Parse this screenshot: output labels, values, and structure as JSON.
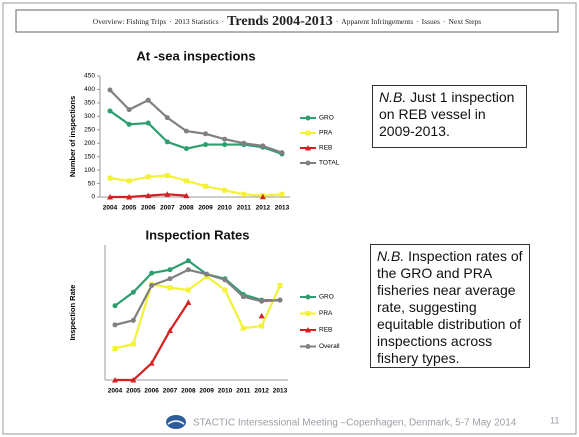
{
  "header": {
    "items": [
      "Overview: Fishing Trips",
      "2013 Statistics",
      "Trends 2004-2013",
      "Apparent Infringements",
      "Issues",
      "Next Steps"
    ],
    "separator": "·",
    "active": 2
  },
  "chart_data": [
    {
      "type": "line",
      "title": "At -sea inspections",
      "y_label": "Number of inspections",
      "categories": [
        "2004",
        "2005",
        "2006",
        "2007",
        "2008",
        "2009",
        "2010",
        "2011",
        "2012",
        "2013"
      ],
      "series": [
        {
          "name": "GRO",
          "color": "#2e9e6e",
          "marker": "circle",
          "values": [
            320,
            270,
            275,
            205,
            180,
            195,
            195,
            195,
            185,
            160
          ]
        },
        {
          "name": "PRA",
          "color": "#f2f23a",
          "marker": "square",
          "values": [
            70,
            60,
            75,
            80,
            60,
            40,
            25,
            10,
            5,
            10
          ]
        },
        {
          "name": "REB",
          "color": "#d42020",
          "marker": "triangle",
          "values": [
            0,
            0,
            5,
            10,
            5,
            null,
            null,
            null,
            1,
            null
          ]
        },
        {
          "name": "TOTAL",
          "color": "#808080",
          "marker": "circle",
          "values": [
            398,
            325,
            360,
            295,
            245,
            235,
            215,
            200,
            190,
            165
          ]
        }
      ],
      "ylim": [
        0,
        450
      ],
      "yticks": [
        0,
        50,
        100,
        150,
        200,
        250,
        300,
        350,
        400,
        450
      ],
      "legend": "right"
    },
    {
      "type": "line",
      "title": "Inspection Rates",
      "y_label": "Inspection Rate",
      "categories": [
        "2004",
        "2005",
        "2006",
        "2007",
        "2008",
        "2009",
        "2010",
        "2011",
        "2012",
        "2013"
      ],
      "series": [
        {
          "name": "GRO",
          "color": "#2e9e6e",
          "marker": "circle",
          "values": [
            33,
            39,
            47.5,
            49,
            53,
            47,
            45,
            38,
            35.5,
            35.5
          ]
        },
        {
          "name": "PRA",
          "color": "#f2f23a",
          "marker": "square",
          "values": [
            14,
            16,
            42.5,
            41,
            40,
            46,
            40,
            23,
            24,
            42
          ]
        },
        {
          "name": "REB",
          "color": "#d42020",
          "marker": "triangle",
          "values": [
            0,
            0,
            7.5,
            22,
            34.5,
            null,
            null,
            null,
            28.5,
            null
          ]
        },
        {
          "name": "Overall",
          "color": "#808080",
          "marker": "circle",
          "values": [
            24.5,
            26.5,
            42,
            45,
            49,
            47,
            44.5,
            37,
            35,
            35.5
          ]
        }
      ],
      "ylim": [
        0,
        60
      ],
      "legend": "right"
    }
  ],
  "notes": [
    {
      "emphasis": "N.B.",
      "text": "Just 1 inspection on REB vessel in 2009-2013."
    },
    {
      "emphasis": "N.B.",
      "text": "Inspection rates of the GRO and PRA fisheries near average rate, suggesting equitable distribution of inspections across fishery types."
    }
  ],
  "footer": {
    "text": "STACTIC Intersessional Meeting –Copenhagen, Denmark, 5-7 May 2014",
    "page": "11"
  }
}
